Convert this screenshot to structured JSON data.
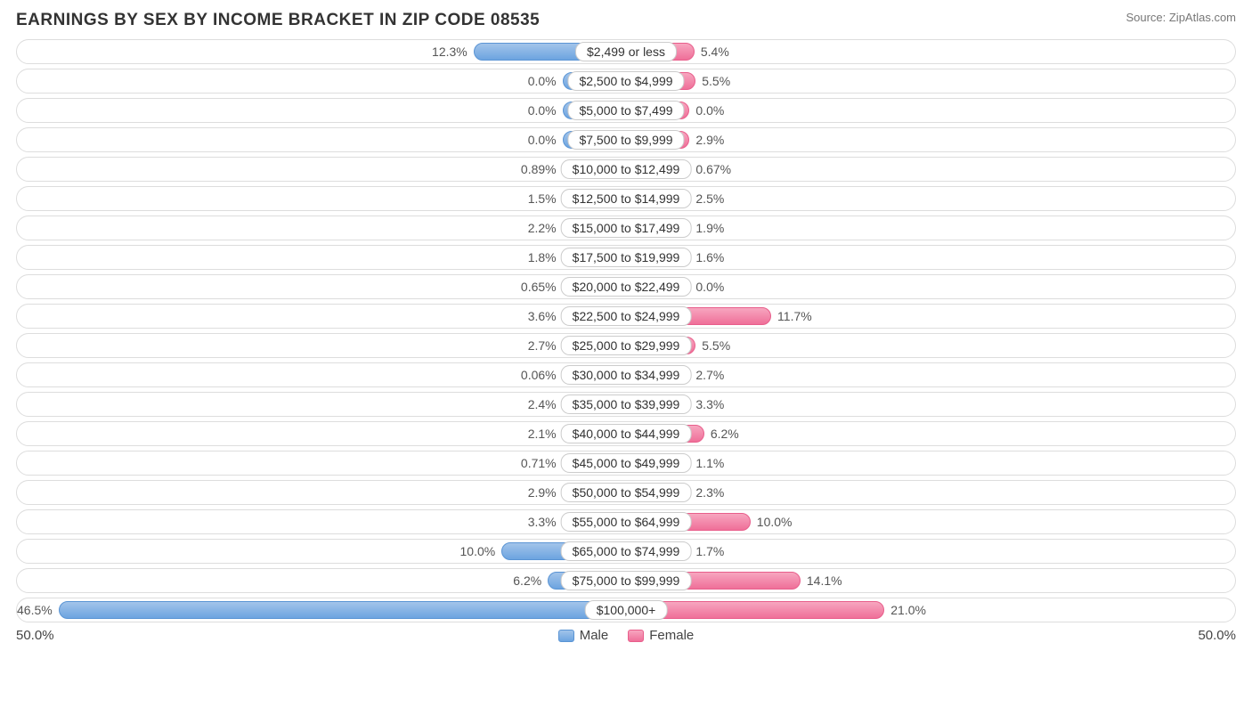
{
  "title": "EARNINGS BY SEX BY INCOME BRACKET IN ZIP CODE 08535",
  "source": "Source: ZipAtlas.com",
  "axis": {
    "max_pct": 50.0,
    "left_label": "50.0%",
    "right_label": "50.0%"
  },
  "colors": {
    "male_fill_top": "#a2c4ea",
    "male_fill_bot": "#6ca4e0",
    "male_border": "#5a94d4",
    "female_fill_top": "#f7a6bf",
    "female_fill_bot": "#ef6f99",
    "female_border": "#e85e8b",
    "row_border": "#dddddd",
    "text": "#555555",
    "bg": "#ffffff"
  },
  "legend": {
    "male": "Male",
    "female": "Female"
  },
  "min_bar_pct": 5.0,
  "rows": [
    {
      "label": "$2,499 or less",
      "male": 12.3,
      "female": 5.4,
      "male_txt": "12.3%",
      "female_txt": "5.4%"
    },
    {
      "label": "$2,500 to $4,999",
      "male": 0.0,
      "female": 5.5,
      "male_txt": "0.0%",
      "female_txt": "5.5%"
    },
    {
      "label": "$5,000 to $7,499",
      "male": 0.0,
      "female": 0.0,
      "male_txt": "0.0%",
      "female_txt": "0.0%"
    },
    {
      "label": "$7,500 to $9,999",
      "male": 0.0,
      "female": 2.9,
      "male_txt": "0.0%",
      "female_txt": "2.9%"
    },
    {
      "label": "$10,000 to $12,499",
      "male": 0.89,
      "female": 0.67,
      "male_txt": "0.89%",
      "female_txt": "0.67%"
    },
    {
      "label": "$12,500 to $14,999",
      "male": 1.5,
      "female": 2.5,
      "male_txt": "1.5%",
      "female_txt": "2.5%"
    },
    {
      "label": "$15,000 to $17,499",
      "male": 2.2,
      "female": 1.9,
      "male_txt": "2.2%",
      "female_txt": "1.9%"
    },
    {
      "label": "$17,500 to $19,999",
      "male": 1.8,
      "female": 1.6,
      "male_txt": "1.8%",
      "female_txt": "1.6%"
    },
    {
      "label": "$20,000 to $22,499",
      "male": 0.65,
      "female": 0.0,
      "male_txt": "0.65%",
      "female_txt": "0.0%"
    },
    {
      "label": "$22,500 to $24,999",
      "male": 3.6,
      "female": 11.7,
      "male_txt": "3.6%",
      "female_txt": "11.7%"
    },
    {
      "label": "$25,000 to $29,999",
      "male": 2.7,
      "female": 5.5,
      "male_txt": "2.7%",
      "female_txt": "5.5%"
    },
    {
      "label": "$30,000 to $34,999",
      "male": 0.06,
      "female": 2.7,
      "male_txt": "0.06%",
      "female_txt": "2.7%"
    },
    {
      "label": "$35,000 to $39,999",
      "male": 2.4,
      "female": 3.3,
      "male_txt": "2.4%",
      "female_txt": "3.3%"
    },
    {
      "label": "$40,000 to $44,999",
      "male": 2.1,
      "female": 6.2,
      "male_txt": "2.1%",
      "female_txt": "6.2%"
    },
    {
      "label": "$45,000 to $49,999",
      "male": 0.71,
      "female": 1.1,
      "male_txt": "0.71%",
      "female_txt": "1.1%"
    },
    {
      "label": "$50,000 to $54,999",
      "male": 2.9,
      "female": 2.3,
      "male_txt": "2.9%",
      "female_txt": "2.3%"
    },
    {
      "label": "$55,000 to $64,999",
      "male": 3.3,
      "female": 10.0,
      "male_txt": "3.3%",
      "female_txt": "10.0%"
    },
    {
      "label": "$65,000 to $74,999",
      "male": 10.0,
      "female": 1.7,
      "male_txt": "10.0%",
      "female_txt": "1.7%"
    },
    {
      "label": "$75,000 to $99,999",
      "male": 6.2,
      "female": 14.1,
      "male_txt": "6.2%",
      "female_txt": "14.1%"
    },
    {
      "label": "$100,000+",
      "male": 46.5,
      "female": 21.0,
      "male_txt": "46.5%",
      "female_txt": "21.0%"
    }
  ]
}
